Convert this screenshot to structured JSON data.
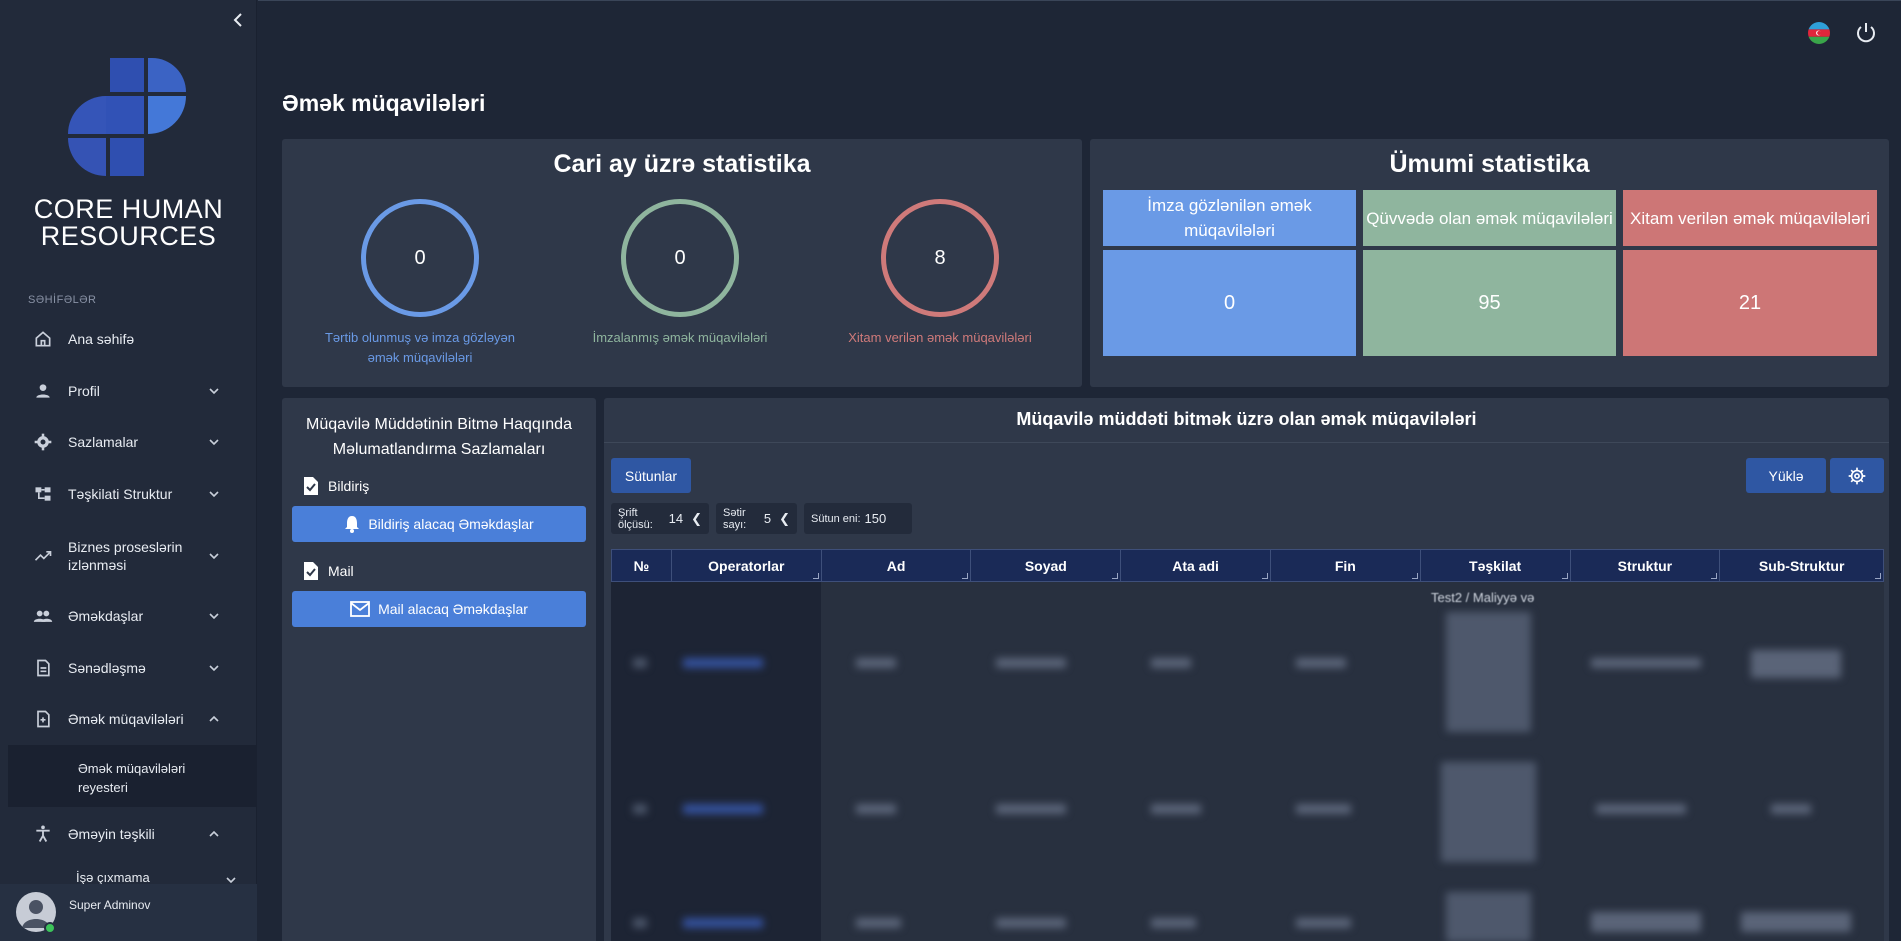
{
  "sidebar": {
    "brand_line1": "CORE HUMAN",
    "brand_line2": "RESOURCES",
    "section_label": "SƏHİFƏLƏR",
    "items": [
      {
        "label": "Ana səhifə",
        "icon": "home-icon"
      },
      {
        "label": "Profil",
        "icon": "person-icon"
      },
      {
        "label": "Sazlamalar",
        "icon": "gear-icon"
      },
      {
        "label": "Təşkilati Struktur",
        "icon": "org-structure-icon"
      },
      {
        "label": "Biznes proseslərin izlənməsi",
        "icon": "trending-icon"
      },
      {
        "label": "Əməkdaşlar",
        "icon": "people-icon"
      },
      {
        "label": "Sənədləşmə",
        "icon": "document-icon"
      },
      {
        "label": "Əmək müqavilələri",
        "icon": "contract-icon"
      },
      {
        "label": "Əməyin təşkili",
        "icon": "accessibility-icon"
      }
    ],
    "sub_item": "Əmək müqavilələri reyesteri",
    "sub_item_next": "İşə çıxmama",
    "user_name": "Super Adminov"
  },
  "page": {
    "title": "Əmək müqavilələri"
  },
  "current_month": {
    "title": "Cari ay üzrə statistika",
    "stats": [
      {
        "value": "0",
        "caption": "Tərtib olunmuş və imza gözləyən əmək müqavilələri",
        "color": "#6a9ae6"
      },
      {
        "value": "0",
        "caption": "İmzalanmış əmək müqavilələri",
        "color": "#8fb59e"
      },
      {
        "value": "8",
        "caption": "Xitam verilən əmək müqavilələri",
        "color": "#cf7a7a"
      }
    ]
  },
  "general": {
    "title": "Ümumi statistika",
    "stats": [
      {
        "label": "İmza gözlənilən əmək müqavilələri",
        "value": "0",
        "color": "#6a9ae6"
      },
      {
        "label": "Qüvvədə olan əmək müqavilələri",
        "value": "95",
        "color": "#8fb59e"
      },
      {
        "label": "Xitam verilən əmək müqavilələri",
        "value": "21",
        "color": "#cd7676"
      }
    ]
  },
  "notification_settings": {
    "title": "Müqavilə Müddətinin Bitmə Haqqında Məlumatlandırma Sazlamaları",
    "notice_label": "Bildiriş",
    "notice_button": "Bildiriş alacaq Əməkdaşlar",
    "mail_label": "Mail",
    "mail_button": "Mail alacaq Əməkdaşlar"
  },
  "expiring_table": {
    "title": "Müqavilə müddəti bitmək üzrə olan əmək müqavilələri",
    "columns_button": "Sütunlar",
    "download_button": "Yüklə",
    "font_size_label": "Şrift ölçüsü:",
    "font_size_value": "14",
    "row_count_label": "Sətir sayı:",
    "row_count_value": "5",
    "column_width_label": "Sütun eni:",
    "column_width_value": "150",
    "headers": [
      "№",
      "Operatorlar",
      "Ad",
      "Soyad",
      "Ata adi",
      "Fin",
      "Təşkilat",
      "Struktur",
      "Sub-Struktur"
    ],
    "partial_text": "Test2 / Maliyyə və"
  }
}
